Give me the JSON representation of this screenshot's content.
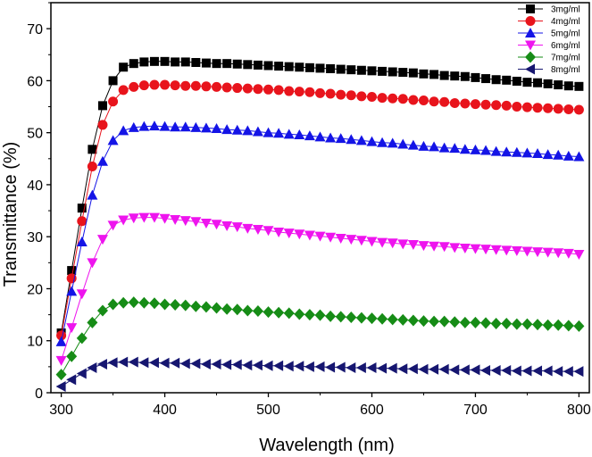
{
  "chart_data": {
    "type": "scatter",
    "title": "",
    "xlabel": "Wavelength (nm)",
    "ylabel": "Transmittance (%)",
    "xlim": [
      290,
      810
    ],
    "ylim": [
      0,
      75
    ],
    "xticks": [
      300,
      400,
      500,
      600,
      700,
      800
    ],
    "yticks": [
      0,
      10,
      20,
      30,
      40,
      50,
      60,
      70
    ],
    "grid": false,
    "legend_position": "top-right",
    "x": [
      300,
      310,
      320,
      330,
      340,
      350,
      360,
      370,
      380,
      390,
      400,
      410,
      420,
      430,
      440,
      450,
      460,
      470,
      480,
      490,
      500,
      510,
      520,
      530,
      540,
      550,
      560,
      570,
      580,
      590,
      600,
      610,
      620,
      630,
      640,
      650,
      660,
      670,
      680,
      690,
      700,
      710,
      720,
      730,
      740,
      750,
      760,
      770,
      780,
      790,
      800
    ],
    "series": [
      {
        "name": "3mg/ml",
        "color": "#000000",
        "marker": "square",
        "values": [
          11.5,
          23.5,
          35.5,
          46.8,
          55.2,
          60,
          62.6,
          63.3,
          63.6,
          63.7,
          63.7,
          63.6,
          63.6,
          63.5,
          63.4,
          63.3,
          63.3,
          63.2,
          63.1,
          63.0,
          62.9,
          62.8,
          62.7,
          62.6,
          62.5,
          62.4,
          62.3,
          62.2,
          62.1,
          62.0,
          61.9,
          61.8,
          61.7,
          61.6,
          61.5,
          61.3,
          61.2,
          61.0,
          60.9,
          60.8,
          60.6,
          60.4,
          60.2,
          60.1,
          59.9,
          59.7,
          59.6,
          59.4,
          59.2,
          59.0,
          58.9
        ]
      },
      {
        "name": "4mg/ml",
        "color": "#e8141c",
        "marker": "circle",
        "values": [
          11,
          22,
          33,
          43.5,
          51.5,
          56,
          58.2,
          58.8,
          59.1,
          59.2,
          59.2,
          59.1,
          59.0,
          59.0,
          58.9,
          58.8,
          58.7,
          58.6,
          58.5,
          58.4,
          58.3,
          58.2,
          58.0,
          57.9,
          57.8,
          57.6,
          57.5,
          57.3,
          57.2,
          57.0,
          56.9,
          56.7,
          56.6,
          56.5,
          56.3,
          56.2,
          56.0,
          55.9,
          55.7,
          55.6,
          55.5,
          55.4,
          55.3,
          55.2,
          55.0,
          54.9,
          54.8,
          54.7,
          54.6,
          54.5,
          54.4
        ]
      },
      {
        "name": "5mg/ml",
        "color": "#1414e6",
        "marker": "triangle-up",
        "values": [
          9.8,
          19.5,
          29,
          38,
          44.5,
          48.5,
          50.4,
          51,
          51.2,
          51.3,
          51.2,
          51.1,
          51.1,
          51.0,
          50.9,
          50.8,
          50.6,
          50.5,
          50.4,
          50.2,
          50.0,
          49.9,
          49.7,
          49.6,
          49.4,
          49.2,
          49.0,
          48.9,
          48.7,
          48.5,
          48.3,
          48.1,
          48.0,
          47.8,
          47.6,
          47.4,
          47.3,
          47.1,
          47.0,
          46.8,
          46.7,
          46.6,
          46.4,
          46.3,
          46.2,
          46.1,
          46.0,
          45.8,
          45.7,
          45.5,
          45.4
        ]
      },
      {
        "name": "6mg/ml",
        "color": "#ee14ee",
        "marker": "triangle-down",
        "values": [
          6.2,
          12.5,
          19,
          25,
          29.5,
          32.2,
          33.2,
          33.6,
          33.7,
          33.7,
          33.5,
          33.3,
          33.1,
          32.9,
          32.6,
          32.4,
          32.1,
          31.9,
          31.6,
          31.4,
          31.2,
          30.9,
          30.7,
          30.5,
          30.3,
          30.1,
          29.9,
          29.7,
          29.5,
          29.3,
          29.1,
          28.9,
          28.8,
          28.6,
          28.5,
          28.3,
          28.2,
          28.1,
          27.9,
          27.8,
          27.7,
          27.6,
          27.5,
          27.4,
          27.3,
          27.2,
          27.1,
          27.0,
          26.9,
          26.8,
          26.6
        ]
      },
      {
        "name": "7mg/ml",
        "color": "#168c16",
        "marker": "diamond",
        "values": [
          3.5,
          7,
          10.5,
          13.5,
          15.8,
          17,
          17.3,
          17.4,
          17.3,
          17.2,
          17.0,
          16.9,
          16.8,
          16.6,
          16.5,
          16.3,
          16.1,
          16.0,
          15.8,
          15.7,
          15.5,
          15.4,
          15.3,
          15.1,
          15.0,
          14.9,
          14.7,
          14.6,
          14.5,
          14.4,
          14.3,
          14.2,
          14.1,
          14.0,
          13.9,
          13.8,
          13.7,
          13.7,
          13.6,
          13.5,
          13.5,
          13.4,
          13.3,
          13.3,
          13.2,
          13.2,
          13.1,
          13.0,
          13.0,
          12.9,
          12.8
        ]
      },
      {
        "name": "8mg/ml",
        "color": "#161670",
        "marker": "triangle-left",
        "values": [
          1.2,
          2.5,
          3.7,
          4.8,
          5.5,
          5.8,
          5.9,
          5.9,
          5.8,
          5.8,
          5.7,
          5.7,
          5.6,
          5.6,
          5.5,
          5.5,
          5.4,
          5.4,
          5.3,
          5.3,
          5.2,
          5.2,
          5.1,
          5.1,
          5.0,
          5.0,
          4.9,
          4.9,
          4.8,
          4.8,
          4.8,
          4.7,
          4.7,
          4.6,
          4.6,
          4.5,
          4.5,
          4.5,
          4.4,
          4.4,
          4.4,
          4.3,
          4.3,
          4.3,
          4.2,
          4.2,
          4.2,
          4.2,
          4.1,
          4.1,
          4.1
        ]
      }
    ]
  }
}
